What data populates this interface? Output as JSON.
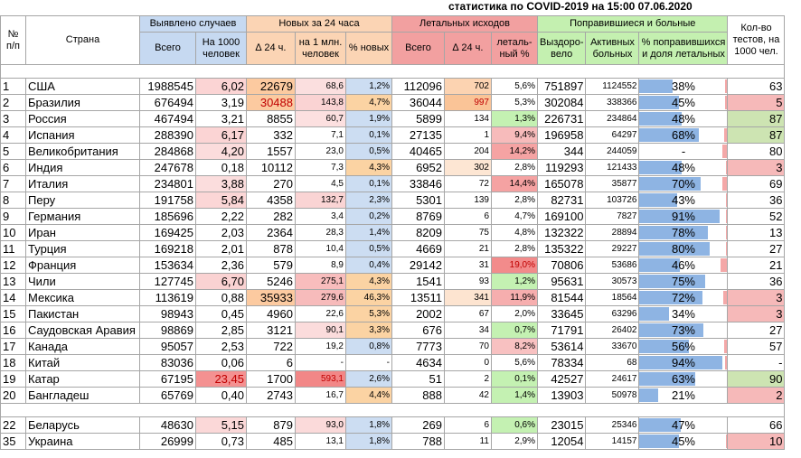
{
  "title": "статистика по COVID-2019 на 15:00 07.06.2020",
  "headers": {
    "num": "№ п/п",
    "country": "Страна",
    "detected": "Выявлено случаев",
    "new24": "Новых за 24 часа",
    "deaths": "Летальных исходов",
    "recovered": "Поправившиеся и больные",
    "tests": "Кол-во тестов, на 1000 чел.",
    "total": "Всего",
    "per1000": "На 1000 человек",
    "d24": "∆ 24 ч.",
    "per1m": "на 1 млн. человек",
    "pctnew": "% новых",
    "total2": "Всего",
    "d24b": "∆ 24 ч.",
    "letpct": "леталь-ный %",
    "recov": "Выздоро-вело",
    "active": "Активных больных",
    "pctrecov": "% поправившихся и доля летальных"
  },
  "rows": [
    {
      "n": "1",
      "country": "США",
      "total": "1988545",
      "per1000": "6,02",
      "d24": "22679",
      "per1m": "68,6",
      "pctnew": "1,2%",
      "deaths": "112096",
      "dd24": "702",
      "letpct": "5,6%",
      "recov": "751897",
      "active": "1124552",
      "pr": "38%",
      "prv": 38,
      "lv": 5.6,
      "tests": "63"
    },
    {
      "n": "2",
      "country": "Бразилия",
      "total": "676494",
      "per1000": "3,19",
      "d24": "30488",
      "per1m": "143,8",
      "pctnew": "4,7%",
      "deaths": "36044",
      "dd24": "997",
      "letpct": "5,3%",
      "recov": "302084",
      "active": "338366",
      "pr": "45%",
      "prv": 45,
      "lv": 5.3,
      "tests": "5"
    },
    {
      "n": "3",
      "country": "Россия",
      "total": "467494",
      "per1000": "3,21",
      "d24": "8855",
      "per1m": "60,7",
      "pctnew": "1,9%",
      "deaths": "5899",
      "dd24": "134",
      "letpct": "1,3%",
      "recov": "226731",
      "active": "234864",
      "pr": "48%",
      "prv": 48,
      "lv": 1.3,
      "tests": "87"
    },
    {
      "n": "4",
      "country": "Испания",
      "total": "288390",
      "per1000": "6,17",
      "d24": "332",
      "per1m": "7,1",
      "pctnew": "0,1%",
      "deaths": "27135",
      "dd24": "1",
      "letpct": "9,4%",
      "recov": "196958",
      "active": "64297",
      "pr": "68%",
      "prv": 68,
      "lv": 9.4,
      "tests": "87"
    },
    {
      "n": "5",
      "country": "Великобритания",
      "total": "284868",
      "per1000": "4,20",
      "d24": "1557",
      "per1m": "23,0",
      "pctnew": "0,5%",
      "deaths": "40465",
      "dd24": "204",
      "letpct": "14,2%",
      "recov": "344",
      "active": "244059",
      "pr": "-",
      "prv": 0,
      "lv": 14.2,
      "tests": "80"
    },
    {
      "n": "6",
      "country": "Индия",
      "total": "247678",
      "per1000": "0,18",
      "d24": "10112",
      "per1m": "7,3",
      "pctnew": "4,3%",
      "deaths": "6952",
      "dd24": "302",
      "letpct": "2,8%",
      "recov": "119293",
      "active": "121433",
      "pr": "48%",
      "prv": 48,
      "lv": 2.8,
      "tests": "3"
    },
    {
      "n": "7",
      "country": "Италия",
      "total": "234801",
      "per1000": "3,88",
      "d24": "270",
      "per1m": "4,5",
      "pctnew": "0,1%",
      "deaths": "33846",
      "dd24": "72",
      "letpct": "14,4%",
      "recov": "165078",
      "active": "35877",
      "pr": "70%",
      "prv": 70,
      "lv": 14.4,
      "tests": "69"
    },
    {
      "n": "8",
      "country": "Перу",
      "total": "191758",
      "per1000": "5,84",
      "d24": "4358",
      "per1m": "132,7",
      "pctnew": "2,3%",
      "deaths": "5301",
      "dd24": "139",
      "letpct": "2,8%",
      "recov": "82731",
      "active": "103726",
      "pr": "43%",
      "prv": 43,
      "lv": 2.8,
      "tests": "36"
    },
    {
      "n": "9",
      "country": "Германия",
      "total": "185696",
      "per1000": "2,22",
      "d24": "282",
      "per1m": "3,4",
      "pctnew": "0,2%",
      "deaths": "8769",
      "dd24": "6",
      "letpct": "4,7%",
      "recov": "169100",
      "active": "7827",
      "pr": "91%",
      "prv": 91,
      "lv": 4.7,
      "tests": "52"
    },
    {
      "n": "10",
      "country": "Иран",
      "total": "169425",
      "per1000": "2,03",
      "d24": "2364",
      "per1m": "28,3",
      "pctnew": "1,4%",
      "deaths": "8209",
      "dd24": "75",
      "letpct": "4,8%",
      "recov": "132322",
      "active": "28894",
      "pr": "78%",
      "prv": 78,
      "lv": 4.8,
      "tests": "13"
    },
    {
      "n": "11",
      "country": "Турция",
      "total": "169218",
      "per1000": "2,01",
      "d24": "878",
      "per1m": "10,4",
      "pctnew": "0,5%",
      "deaths": "4669",
      "dd24": "21",
      "letpct": "2,8%",
      "recov": "135322",
      "active": "29227",
      "pr": "80%",
      "prv": 80,
      "lv": 2.8,
      "tests": "27"
    },
    {
      "n": "12",
      "country": "Франция",
      "total": "153634",
      "per1000": "2,36",
      "d24": "579",
      "per1m": "8,9",
      "pctnew": "0,4%",
      "deaths": "29142",
      "dd24": "31",
      "letpct": "19,0%",
      "recov": "70806",
      "active": "53686",
      "pr": "46%",
      "prv": 46,
      "lv": 19.0,
      "tests": "21"
    },
    {
      "n": "13",
      "country": "Чили",
      "total": "127745",
      "per1000": "6,70",
      "d24": "5246",
      "per1m": "275,1",
      "pctnew": "4,3%",
      "deaths": "1541",
      "dd24": "93",
      "letpct": "1,2%",
      "recov": "95631",
      "active": "30573",
      "pr": "75%",
      "prv": 75,
      "lv": 1.2,
      "tests": "36"
    },
    {
      "n": "14",
      "country": "Мексика",
      "total": "113619",
      "per1000": "0,88",
      "d24": "35933",
      "per1m": "279,6",
      "pctnew": "46,3%",
      "deaths": "13511",
      "dd24": "341",
      "letpct": "11,9%",
      "recov": "81544",
      "active": "18564",
      "pr": "72%",
      "prv": 72,
      "lv": 11.9,
      "tests": "3"
    },
    {
      "n": "15",
      "country": "Пакистан",
      "total": "98943",
      "per1000": "0,45",
      "d24": "4960",
      "per1m": "22,6",
      "pctnew": "5,3%",
      "deaths": "2002",
      "dd24": "67",
      "letpct": "2,0%",
      "recov": "33645",
      "active": "63296",
      "pr": "34%",
      "prv": 34,
      "lv": 2.0,
      "tests": "3"
    },
    {
      "n": "16",
      "country": "Саудовская Аравия",
      "total": "98869",
      "per1000": "2,85",
      "d24": "3121",
      "per1m": "90,1",
      "pctnew": "3,3%",
      "deaths": "676",
      "dd24": "34",
      "letpct": "0,7%",
      "recov": "71791",
      "active": "26402",
      "pr": "73%",
      "prv": 73,
      "lv": 0.7,
      "tests": "27"
    },
    {
      "n": "17",
      "country": "Канада",
      "total": "95057",
      "per1000": "2,53",
      "d24": "722",
      "per1m": "19,2",
      "pctnew": "0,8%",
      "deaths": "7773",
      "dd24": "70",
      "letpct": "8,2%",
      "recov": "53614",
      "active": "33670",
      "pr": "56%",
      "prv": 56,
      "lv": 8.2,
      "tests": "57"
    },
    {
      "n": "18",
      "country": "Китай",
      "total": "83036",
      "per1000": "0,06",
      "d24": "6",
      "per1m": "-",
      "pctnew": "-",
      "deaths": "4634",
      "dd24": "0",
      "letpct": "5,6%",
      "recov": "78334",
      "active": "68",
      "pr": "94%",
      "prv": 94,
      "lv": 5.6,
      "tests": "-"
    },
    {
      "n": "19",
      "country": "Катар",
      "total": "67195",
      "per1000": "23,45",
      "d24": "1700",
      "per1m": "593,1",
      "pctnew": "2,6%",
      "deaths": "51",
      "dd24": "2",
      "letpct": "0,1%",
      "recov": "42527",
      "active": "24617",
      "pr": "63%",
      "prv": 63,
      "lv": 0.1,
      "tests": "90"
    },
    {
      "n": "20",
      "country": "Бангладеш",
      "total": "65769",
      "per1000": "0,40",
      "d24": "2743",
      "per1m": "16,7",
      "pctnew": "4,4%",
      "deaths": "888",
      "dd24": "42",
      "letpct": "1,4%",
      "recov": "13903",
      "active": "50978",
      "pr": "21%",
      "prv": 21,
      "lv": 1.4,
      "tests": "2"
    }
  ],
  "extra_rows": [
    {
      "n": "22",
      "country": "Беларусь",
      "total": "48630",
      "per1000": "5,15",
      "d24": "879",
      "per1m": "93,0",
      "pctnew": "1,8%",
      "deaths": "269",
      "dd24": "6",
      "letpct": "0,6%",
      "recov": "23015",
      "active": "25346",
      "pr": "47%",
      "prv": 47,
      "lv": 0.6,
      "tests": "66"
    },
    {
      "n": "35",
      "country": "Украина",
      "total": "26999",
      "per1000": "0,73",
      "d24": "485",
      "per1m": "13,1",
      "pctnew": "1,8%",
      "deaths": "788",
      "dd24": "11",
      "letpct": "2,9%",
      "recov": "12054",
      "active": "14157",
      "pr": "45%",
      "prv": 45,
      "lv": 2.9,
      "tests": "10"
    }
  ],
  "colors": {
    "blue": "#c6d9f1",
    "orange": "#fbd4b4",
    "red": "#f2a0a0",
    "green": "#c4f0b0",
    "bar": "#8eb4e3",
    "lethal": "#f4a8a8"
  }
}
